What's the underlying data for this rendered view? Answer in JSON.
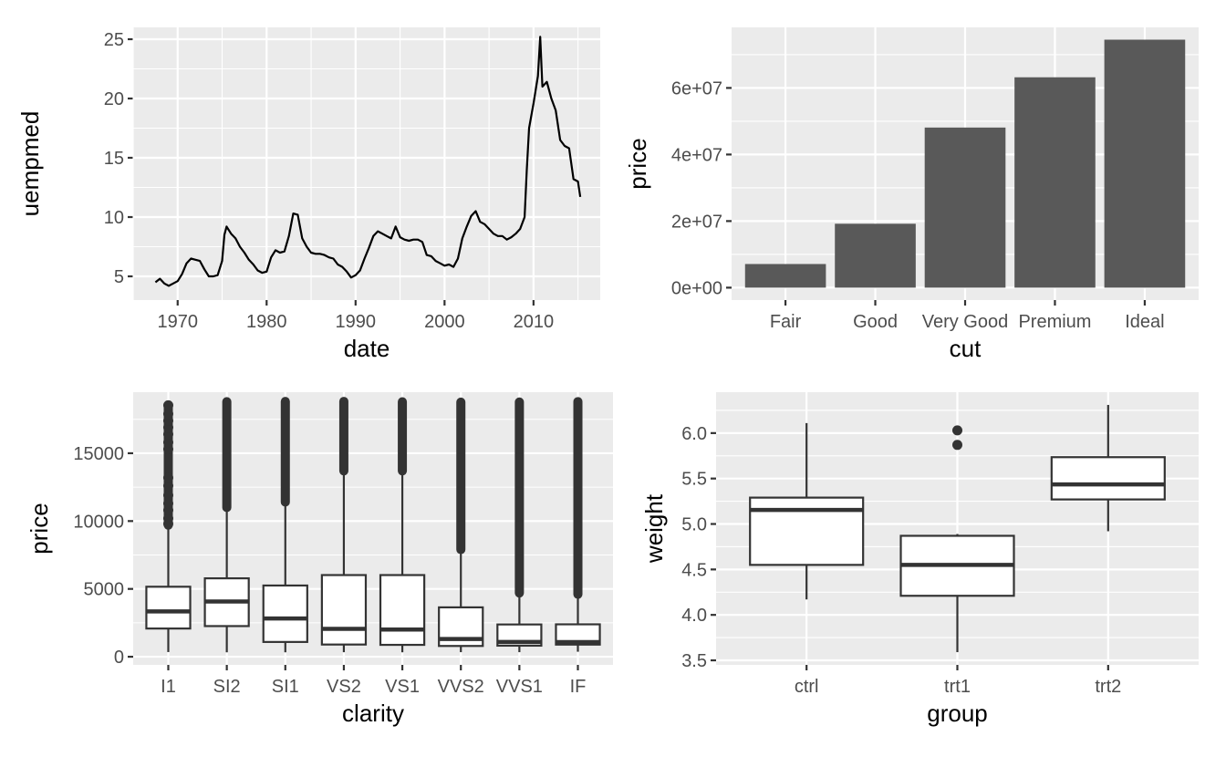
{
  "chart_data": [
    {
      "type": "line",
      "xlabel": "date",
      "ylabel": "uempmed",
      "xlim": [
        "1965-01-01",
        "2017-07-01"
      ],
      "ylim": [
        3.0,
        26.0
      ],
      "x_ticks": [
        "1970",
        "1980",
        "1990",
        "2000",
        "2010"
      ],
      "y_ticks": [
        "5",
        "10",
        "15",
        "20",
        "25"
      ],
      "grid": true,
      "color": "#000000",
      "series": [
        {
          "x": [
            "1967-07",
            "1968-01",
            "1968-07",
            "1969-01",
            "1969-07",
            "1970-01",
            "1970-07",
            "1971-01",
            "1971-07",
            "1972-01",
            "1972-07",
            "1973-01",
            "1973-07",
            "1974-01",
            "1974-07",
            "1975-01",
            "1975-04",
            "1975-07",
            "1976-01",
            "1976-07",
            "1977-01",
            "1977-07",
            "1978-01",
            "1978-07",
            "1979-01",
            "1979-07",
            "1980-01",
            "1980-07",
            "1981-01",
            "1981-07",
            "1982-01",
            "1982-07",
            "1983-01",
            "1983-07",
            "1984-01",
            "1984-07",
            "1985-01",
            "1985-07",
            "1986-01",
            "1986-07",
            "1987-01",
            "1987-07",
            "1988-01",
            "1988-07",
            "1989-01",
            "1989-07",
            "1990-01",
            "1990-07",
            "1991-01",
            "1991-07",
            "1992-01",
            "1992-07",
            "1993-01",
            "1993-07",
            "1994-01",
            "1994-07",
            "1995-01",
            "1995-07",
            "1996-01",
            "1996-07",
            "1997-01",
            "1997-07",
            "1998-01",
            "1998-07",
            "1999-01",
            "1999-07",
            "2000-01",
            "2000-07",
            "2001-01",
            "2001-07",
            "2002-01",
            "2002-07",
            "2003-01",
            "2003-07",
            "2004-01",
            "2004-07",
            "2005-01",
            "2005-07",
            "2006-01",
            "2006-07",
            "2007-01",
            "2007-07",
            "2008-01",
            "2008-07",
            "2009-01",
            "2009-04",
            "2009-07",
            "2010-01",
            "2010-07",
            "2010-10",
            "2011-01",
            "2011-07",
            "2012-01",
            "2012-07",
            "2013-01",
            "2013-07",
            "2014-01",
            "2014-07",
            "2015-01",
            "2015-04"
          ],
          "values": [
            4.5,
            4.8,
            4.4,
            4.2,
            4.4,
            4.6,
            5.2,
            6.1,
            6.5,
            6.4,
            6.3,
            5.6,
            5.0,
            5.0,
            5.1,
            6.3,
            8.5,
            9.2,
            8.6,
            8.2,
            7.5,
            7.0,
            6.4,
            6.0,
            5.5,
            5.3,
            5.4,
            6.6,
            7.2,
            7.0,
            7.1,
            8.4,
            10.3,
            10.2,
            8.2,
            7.5,
            7.0,
            6.9,
            6.9,
            6.8,
            6.6,
            6.5,
            6.0,
            5.8,
            5.4,
            4.9,
            5.1,
            5.5,
            6.5,
            7.4,
            8.4,
            8.8,
            8.6,
            8.4,
            8.2,
            9.2,
            8.3,
            8.1,
            8.0,
            8.1,
            8.1,
            7.9,
            6.8,
            6.7,
            6.3,
            6.1,
            5.9,
            6.0,
            5.8,
            6.5,
            8.2,
            9.2,
            10.1,
            10.5,
            9.6,
            9.4,
            9.0,
            8.6,
            8.4,
            8.4,
            8.1,
            8.3,
            8.6,
            9.0,
            10.0,
            14.0,
            17.5,
            19.6,
            21.9,
            25.2,
            21.0,
            21.4,
            20.0,
            19.0,
            16.5,
            16.0,
            15.8,
            13.2,
            13.0,
            11.7
          ]
        }
      ]
    },
    {
      "type": "bar",
      "xlabel": "cut",
      "ylabel": "price",
      "categories": [
        "Fair",
        "Good",
        "Very Good",
        "Premium",
        "Ideal"
      ],
      "values": [
        7100000,
        19200000,
        48100000,
        63200000,
        74500000
      ],
      "ylim": [
        -3730000,
        78200000
      ],
      "y_ticks": [
        "0e+00",
        "2e+07",
        "4e+07",
        "6e+07"
      ],
      "grid": true,
      "color": "#595959"
    },
    {
      "type": "boxplot",
      "xlabel": "clarity",
      "ylabel": "price",
      "categories": [
        "I1",
        "SI2",
        "SI1",
        "VS2",
        "VS1",
        "VVS2",
        "VVS1",
        "IF"
      ],
      "ylim": [
        -600,
        19500
      ],
      "y_ticks": [
        "0",
        "5000",
        "10000",
        "15000"
      ],
      "grid": true,
      "boxes": [
        {
          "min": 345,
          "q1": 2080,
          "median": 3344,
          "q3": 5160,
          "whisker_high": 9700,
          "outliers_low": 9700,
          "outliers_high": 18531,
          "outliers": [
            9800,
            10200,
            10800,
            11300,
            11900,
            12600,
            13200,
            15300,
            15800,
            16400,
            16900,
            17400,
            17900,
            18531
          ]
        },
        {
          "min": 326,
          "q1": 2260,
          "median": 4072,
          "q3": 5780,
          "whisker_high": 11000,
          "outliers_low": 11000,
          "outliers_high": 18804
        },
        {
          "min": 326,
          "q1": 1090,
          "median": 2822,
          "q3": 5250,
          "whisker_high": 11400,
          "outliers_low": 11400,
          "outliers_high": 18818
        },
        {
          "min": 334,
          "q1": 900,
          "median": 2054,
          "q3": 6020,
          "whisker_high": 13700,
          "outliers_low": 13700,
          "outliers_high": 18823
        },
        {
          "min": 327,
          "q1": 876,
          "median": 2005,
          "q3": 6020,
          "whisker_high": 13700,
          "outliers_low": 13700,
          "outliers_high": 18795
        },
        {
          "min": 336,
          "q1": 794,
          "median": 1311,
          "q3": 3640,
          "whisker_high": 7900,
          "outliers_low": 7900,
          "outliers_high": 18768
        },
        {
          "min": 336,
          "q1": 816,
          "median": 1093,
          "q3": 2380,
          "whisker_high": 4700,
          "outliers_low": 4700,
          "outliers_high": 18777
        },
        {
          "min": 369,
          "q1": 895,
          "median": 1080,
          "q3": 2390,
          "whisker_high": 4600,
          "outliers_low": 4600,
          "outliers_high": 18806
        }
      ]
    },
    {
      "type": "boxplot",
      "xlabel": "group",
      "ylabel": "weight",
      "categories": [
        "ctrl",
        "trt1",
        "trt2"
      ],
      "ylim": [
        3.45,
        6.45
      ],
      "y_ticks": [
        "3.5",
        "4.0",
        "4.5",
        "5.0",
        "5.5",
        "6.0"
      ],
      "grid": true,
      "boxes": [
        {
          "min": 4.17,
          "q1": 4.55,
          "median": 5.155,
          "q3": 5.29,
          "max": 6.11,
          "outliers": []
        },
        {
          "min": 3.59,
          "q1": 4.21,
          "median": 4.55,
          "q3": 4.87,
          "max": 4.89,
          "outliers": [
            5.87,
            6.03
          ]
        },
        {
          "min": 4.92,
          "q1": 5.27,
          "median": 5.435,
          "q3": 5.735,
          "max": 6.31,
          "outliers": []
        }
      ]
    }
  ]
}
